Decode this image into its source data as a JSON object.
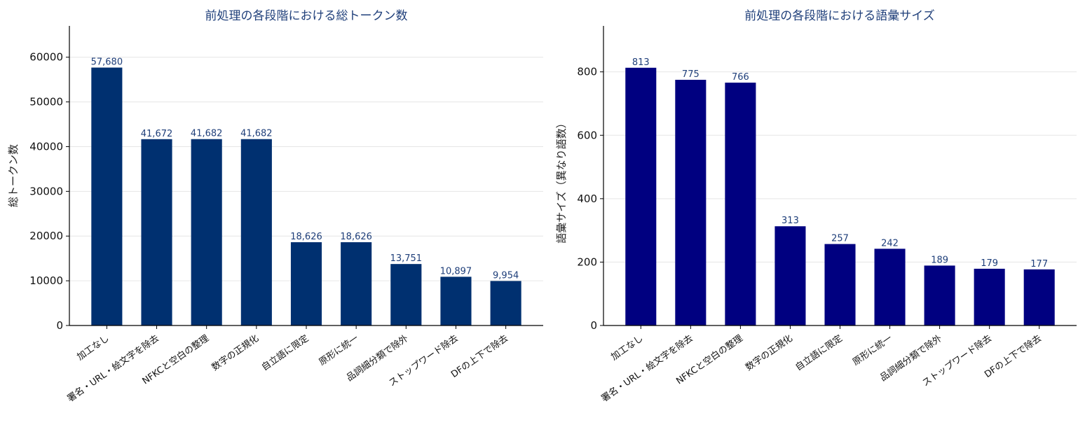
{
  "chart_data": [
    {
      "type": "bar",
      "title": "前処理の各段階における総トークン数",
      "xlabel": "",
      "ylabel": "総トークン数",
      "categories": [
        "加工なし",
        "署名・URL・絵文字を除去",
        "NFKCと空白の整理",
        "数字の正規化",
        "自立語に限定",
        "原形に統一",
        "品詞細分類で除外",
        "ストップワード除去",
        "DFの上下で除去"
      ],
      "values": [
        57680,
        41672,
        41682,
        41682,
        18626,
        18626,
        13751,
        10897,
        9954
      ],
      "value_labels": [
        "57,680",
        "41,672",
        "41,682",
        "41,682",
        "18,626",
        "18,626",
        "13,751",
        "10,897",
        "9,954"
      ],
      "ylim": [
        0,
        67000
      ],
      "yticks": [
        0,
        10000,
        20000,
        30000,
        40000,
        50000,
        60000
      ],
      "grid": true,
      "bar_color": "#003070"
    },
    {
      "type": "bar",
      "title": "前処理の各段階における語彙サイズ",
      "xlabel": "",
      "ylabel": "語彙サイズ（異なり語数）",
      "categories": [
        "加工なし",
        "署名・URL・絵文字を除去",
        "NFKCと空白の整理",
        "数字の正規化",
        "自立語に限定",
        "原形に統一",
        "品詞細分類で除外",
        "ストップワード除去",
        "DFの上下で除去"
      ],
      "values": [
        813,
        775,
        766,
        313,
        257,
        242,
        189,
        179,
        177
      ],
      "value_labels": [
        "813",
        "775",
        "766",
        "313",
        "257",
        "242",
        "189",
        "179",
        "177"
      ],
      "ylim": [
        0,
        945
      ],
      "yticks": [
        0,
        200,
        400,
        600,
        800
      ],
      "grid": true,
      "bar_color": "#000080"
    }
  ]
}
